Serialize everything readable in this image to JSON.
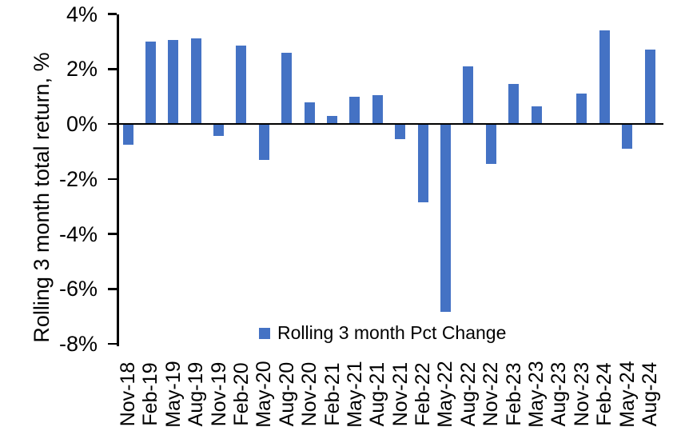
{
  "chart_data": {
    "type": "bar",
    "ylabel": "Rolling 3 month total return, %",
    "series_name": "Rolling 3 month Pct Change",
    "categories": [
      "Nov-18",
      "Feb-19",
      "May-19",
      "Aug-19",
      "Nov-19",
      "Feb-20",
      "May-20",
      "Aug-20",
      "Nov-20",
      "Feb-21",
      "May-21",
      "Aug-21",
      "Nov-21",
      "Feb-22",
      "May-22",
      "Aug-22",
      "Nov-22",
      "Feb-23",
      "May-23",
      "Aug-23",
      "Nov-23",
      "Feb-24",
      "May-24",
      "Aug-24"
    ],
    "values": [
      -0.75,
      3.0,
      3.05,
      3.1,
      -0.45,
      2.85,
      -1.3,
      2.6,
      0.8,
      0.3,
      1.0,
      1.05,
      -0.55,
      -2.85,
      -6.85,
      2.1,
      -1.45,
      1.45,
      0.65,
      0,
      1.1,
      3.4,
      -0.9,
      2.7
    ],
    "ylim": [
      -8,
      4
    ],
    "yticks": [
      {
        "value": 4,
        "label": "4%"
      },
      {
        "value": 2,
        "label": "2%"
      },
      {
        "value": 0,
        "label": "0%"
      },
      {
        "value": -2,
        "label": "-2%"
      },
      {
        "value": -4,
        "label": "-4%"
      },
      {
        "value": -6,
        "label": "-6%"
      },
      {
        "value": -8,
        "label": "-8%"
      }
    ],
    "grid": false,
    "legend_position": "bottom-center",
    "colors": {
      "bar": "#4472C4",
      "axis": "#000000",
      "text": "#000000",
      "background": "#FFFFFF"
    }
  }
}
